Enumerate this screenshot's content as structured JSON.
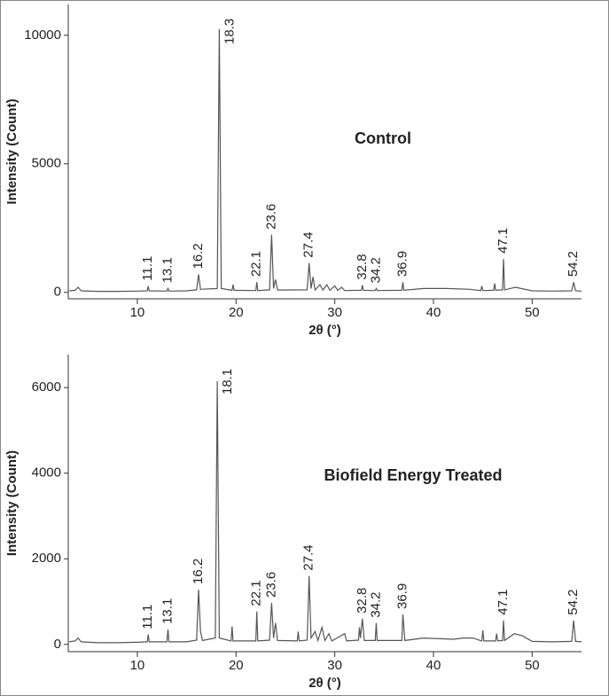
{
  "chart_data": [
    {
      "type": "line",
      "title": "Control",
      "xlabel": "2θ (°)",
      "ylabel": "Intensity (Count)",
      "xlim": [
        3,
        55
      ],
      "ylim": [
        -250,
        11200
      ],
      "xticks": [
        10,
        20,
        30,
        40,
        50
      ],
      "yticks": [
        0,
        5000,
        10000
      ],
      "color": "#555555",
      "x": [
        3.1,
        3.7,
        4.0,
        4.3,
        6,
        8,
        10,
        11.0,
        11.1,
        11.2,
        13.0,
        13.1,
        13.2,
        15,
        16.0,
        16.2,
        16.4,
        18.1,
        18.3,
        18.5,
        19.6,
        19.7,
        19.8,
        22.0,
        22.1,
        22.2,
        23.4,
        23.6,
        23.8,
        24.0,
        24.2,
        27.2,
        27.4,
        27.6,
        27.8,
        28.0,
        28.5,
        28.8,
        29.2,
        29.5,
        30.0,
        30.3,
        30.7,
        31,
        32.7,
        32.8,
        32.9,
        34.1,
        34.2,
        34.3,
        36.8,
        36.9,
        37.0,
        39.0,
        41.4,
        43.7,
        44.8,
        44.9,
        45.0,
        46.1,
        46.2,
        46.3,
        47.0,
        47.1,
        47.2,
        48.3,
        50,
        52,
        54.0,
        54.2,
        54.4,
        55
      ],
      "values": [
        60,
        80,
        200,
        60,
        40,
        40,
        50,
        60,
        240,
        60,
        50,
        150,
        50,
        60,
        100,
        700,
        120,
        150,
        10240,
        150,
        80,
        300,
        80,
        70,
        400,
        70,
        100,
        2240,
        150,
        500,
        90,
        100,
        1140,
        150,
        600,
        90,
        300,
        90,
        300,
        80,
        250,
        80,
        200,
        70,
        80,
        280,
        80,
        70,
        150,
        70,
        80,
        400,
        80,
        150,
        150,
        120,
        70,
        250,
        70,
        80,
        350,
        80,
        100,
        1300,
        100,
        200,
        60,
        50,
        60,
        400,
        60,
        50
      ],
      "peaks": [
        {
          "x": 11.1,
          "intensity": 240
        },
        {
          "x": 13.1,
          "intensity": 150
        },
        {
          "x": 16.2,
          "intensity": 700
        },
        {
          "x": 18.3,
          "intensity": 10240
        },
        {
          "x": 22.1,
          "intensity": 400
        },
        {
          "x": 23.6,
          "intensity": 2240
        },
        {
          "x": 27.4,
          "intensity": 1140
        },
        {
          "x": 32.8,
          "intensity": 280
        },
        {
          "x": 34.2,
          "intensity": 150
        },
        {
          "x": 36.9,
          "intensity": 400
        },
        {
          "x": 47.1,
          "intensity": 1300
        },
        {
          "x": 54.2,
          "intensity": 400
        }
      ]
    },
    {
      "type": "line",
      "title": "Biofield Energy Treated",
      "xlabel": "2θ (°)",
      "ylabel": "Intensity (Count)",
      "xlim": [
        3,
        55
      ],
      "ylim": [
        -170,
        6770
      ],
      "xticks": [
        10,
        20,
        30,
        40,
        50
      ],
      "yticks": [
        0,
        2000,
        4000,
        6000
      ],
      "color": "#555555",
      "x": [
        3.1,
        3.7,
        4.0,
        4.3,
        6,
        8,
        10,
        11.0,
        11.1,
        11.2,
        13.0,
        13.1,
        13.2,
        15,
        16.0,
        16.2,
        16.4,
        16.6,
        17.9,
        18.1,
        18.3,
        19.5,
        19.6,
        19.7,
        22.0,
        22.1,
        22.2,
        23.4,
        23.6,
        23.8,
        24.0,
        24.2,
        26.2,
        26.3,
        26.4,
        27.2,
        27.4,
        27.6,
        28.0,
        28.3,
        28.7,
        29.0,
        29.4,
        29.7,
        31.0,
        31.2,
        32.4,
        32.5,
        32.6,
        32.8,
        33.0,
        34.1,
        34.2,
        34.3,
        36.8,
        36.9,
        37.1,
        39.0,
        42,
        43,
        44,
        44.9,
        45.0,
        45.1,
        46.3,
        46.4,
        46.5,
        47.0,
        47.1,
        47.2,
        48.2,
        49.0,
        50,
        52,
        54.0,
        54.2,
        54.4,
        55
      ],
      "values": [
        60,
        80,
        150,
        60,
        40,
        40,
        50,
        60,
        230,
        60,
        60,
        350,
        60,
        60,
        100,
        1280,
        300,
        90,
        150,
        6150,
        150,
        80,
        420,
        80,
        80,
        770,
        80,
        100,
        970,
        150,
        500,
        90,
        80,
        300,
        80,
        100,
        1600,
        150,
        300,
        90,
        400,
        90,
        250,
        80,
        250,
        80,
        100,
        400,
        150,
        600,
        90,
        90,
        500,
        90,
        90,
        700,
        90,
        150,
        120,
        150,
        150,
        80,
        330,
        80,
        80,
        250,
        80,
        90,
        560,
        90,
        250,
        200,
        70,
        60,
        70,
        560,
        70,
        60
      ],
      "peaks": [
        {
          "x": 11.1,
          "intensity": 230
        },
        {
          "x": 13.1,
          "intensity": 350
        },
        {
          "x": 16.2,
          "intensity": 1280
        },
        {
          "x": 18.1,
          "intensity": 6150
        },
        {
          "x": 22.1,
          "intensity": 770
        },
        {
          "x": 23.6,
          "intensity": 970
        },
        {
          "x": 27.4,
          "intensity": 1600
        },
        {
          "x": 32.8,
          "intensity": 600
        },
        {
          "x": 34.2,
          "intensity": 500
        },
        {
          "x": 36.9,
          "intensity": 700
        },
        {
          "x": 47.1,
          "intensity": 560
        },
        {
          "x": 54.2,
          "intensity": 560
        }
      ]
    }
  ]
}
